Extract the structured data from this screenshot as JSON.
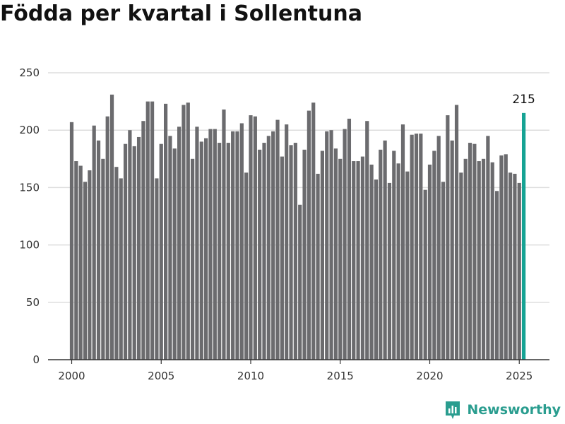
{
  "title": "Födda per kvartal i Sollentuna",
  "brand": "Newsworthy",
  "colors": {
    "bar": "#6b6b6e",
    "highlight": "#16a394",
    "grid": "#dddddd",
    "axis": "#333333"
  },
  "chart_data": {
    "type": "bar",
    "title": "Födda per kvartal i Sollentuna",
    "xlabel": "",
    "ylabel": "",
    "ylim": [
      0,
      250
    ],
    "yticks": [
      0,
      50,
      100,
      150,
      200,
      250
    ],
    "xticks": [
      "2000",
      "2005",
      "2010",
      "2015",
      "2020",
      "2025"
    ],
    "grid": true,
    "start_year": 2000,
    "values": [
      207,
      173,
      169,
      155,
      165,
      204,
      191,
      175,
      212,
      231,
      168,
      158,
      188,
      200,
      186,
      194,
      208,
      225,
      225,
      158,
      188,
      223,
      195,
      184,
      203,
      222,
      224,
      175,
      203,
      190,
      193,
      201,
      201,
      189,
      218,
      189,
      199,
      199,
      206,
      163,
      213,
      212,
      183,
      189,
      195,
      199,
      209,
      177,
      205,
      187,
      189,
      135,
      183,
      217,
      224,
      162,
      182,
      199,
      200,
      184,
      175,
      201,
      210,
      173,
      173,
      177,
      208,
      170,
      157,
      183,
      191,
      154,
      182,
      171,
      205,
      164,
      196,
      197,
      197,
      148,
      170,
      182,
      195,
      155,
      213,
      191,
      222,
      163,
      175,
      189,
      188,
      173,
      175,
      195,
      172,
      147,
      178,
      179,
      163,
      162,
      154,
      215
    ],
    "highlight_last": true,
    "last_label": "215"
  }
}
